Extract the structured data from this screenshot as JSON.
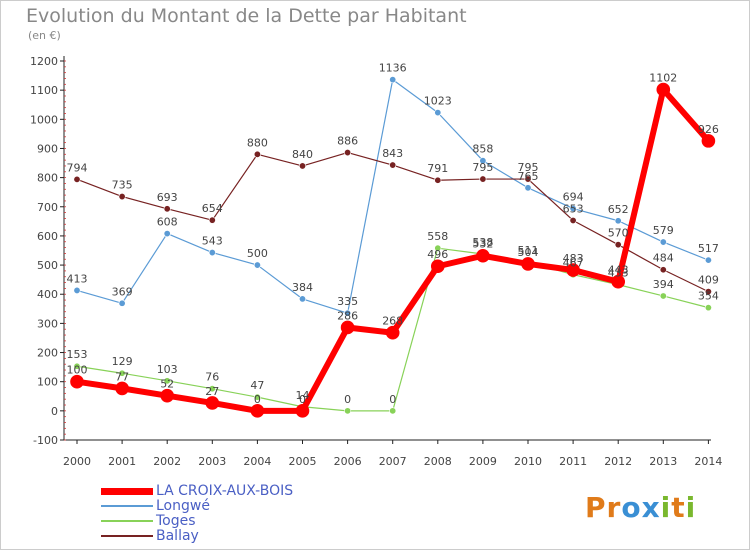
{
  "title": "Evolution du Montant de la Dette par Habitant",
  "unit": "(en €)",
  "logo": {
    "text": "Proxiti",
    "colors": [
      "#e07b1a",
      "#3a8fd4",
      "#7ab82e"
    ]
  },
  "chart_data": {
    "type": "line",
    "x": [
      "2000",
      "2001",
      "2002",
      "2003",
      "2004",
      "2005",
      "2006",
      "2007",
      "2008",
      "2009",
      "2010",
      "2011",
      "2012",
      "2013",
      "2014"
    ],
    "ylim": [
      -100,
      1200
    ],
    "yticks": [
      -100,
      0,
      100,
      200,
      300,
      400,
      500,
      600,
      700,
      800,
      900,
      1000,
      1100,
      1200
    ],
    "grid": false,
    "legend_position": "bottom-left",
    "series": [
      {
        "name": "LA CROIX-AUX-BOIS",
        "color": "#ff0000",
        "values": [
          100,
          77,
          52,
          27,
          0,
          0,
          286,
          268,
          496,
          532,
          504,
          483,
          443,
          1102,
          926
        ],
        "labels": [
          "100",
          "77",
          "52",
          "27",
          "0",
          "0",
          "286",
          "268",
          "496",
          "532",
          "504",
          "483",
          "443",
          "1102",
          "926"
        ]
      },
      {
        "name": "Longwé",
        "color": "#5b9bd5",
        "values": [
          413,
          369,
          608,
          543,
          500,
          384,
          335,
          1136,
          1023,
          858,
          765,
          694,
          652,
          579,
          517
        ],
        "labels": [
          "413",
          "369",
          "608",
          "543",
          "500",
          "384",
          "335",
          "1136",
          "1023",
          "858",
          "765",
          "694",
          "652",
          "579",
          "517"
        ]
      },
      {
        "name": "Toges",
        "color": "#88d258",
        "values": [
          153,
          129,
          103,
          76,
          47,
          14,
          0,
          0,
          558,
          538,
          511,
          467,
          433,
          394,
          354
        ],
        "labels": [
          "153",
          "129",
          "103",
          "76",
          "47",
          "14",
          "0",
          "0",
          "558",
          "538",
          "511",
          "467",
          "433",
          "394",
          "354"
        ]
      },
      {
        "name": "Ballay",
        "color": "#772222",
        "values": [
          794,
          735,
          693,
          654,
          880,
          840,
          886,
          843,
          791,
          795,
          795,
          653,
          570,
          484,
          409
        ],
        "labels": [
          "794",
          "735",
          "693",
          "654",
          "880",
          "840",
          "886",
          "843",
          "791",
          "795",
          "795",
          "653",
          "570",
          "484",
          "409"
        ]
      }
    ]
  }
}
